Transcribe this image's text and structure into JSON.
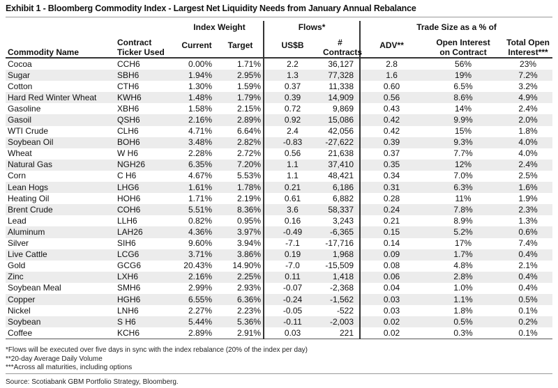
{
  "title": "Exhibit 1 - Bloomberg Commodity Index - Largest Net Liquidity Needs from January Annual Rebalance",
  "headers": {
    "group_index_weight": "Index Weight",
    "group_flows": "Flows*",
    "group_trade_size": "Trade Size as a % of",
    "commodity": "Commodity Name",
    "ticker_l1": "Contract",
    "ticker_l2": "Ticker Used",
    "current": "Current",
    "target": "Target",
    "usdb": "US$B",
    "contracts_l1": "#",
    "contracts_l2": "Contracts",
    "adv": "ADV**",
    "oi_l1": "Open Interest",
    "oi_l2": "on Contract",
    "toi_l1": "Total Open",
    "toi_l2": "Interest***"
  },
  "rows": [
    [
      "Cocoa",
      "CCH6",
      "0.00%",
      "1.71%",
      "2.2",
      "36,127",
      "2.8",
      "56%",
      "23%"
    ],
    [
      "Sugar",
      "SBH6",
      "1.94%",
      "2.95%",
      "1.3",
      "77,328",
      "1.6",
      "19%",
      "7.2%"
    ],
    [
      "Cotton",
      "CTH6",
      "1.30%",
      "1.59%",
      "0.37",
      "11,338",
      "0.60",
      "6.5%",
      "3.2%"
    ],
    [
      "Hard Red Winter Wheat",
      "KWH6",
      "1.48%",
      "1.79%",
      "0.39",
      "14,909",
      "0.56",
      "8.6%",
      "4.9%"
    ],
    [
      "Gasoline",
      "XBH6",
      "1.58%",
      "2.15%",
      "0.72",
      "9,869",
      "0.43",
      "14%",
      "2.4%"
    ],
    [
      "Gasoil",
      "QSH6",
      "2.16%",
      "2.89%",
      "0.92",
      "15,086",
      "0.42",
      "9.9%",
      "2.0%"
    ],
    [
      "WTI Crude",
      "CLH6",
      "4.71%",
      "6.64%",
      "2.4",
      "42,056",
      "0.42",
      "15%",
      "1.8%"
    ],
    [
      "Soybean Oil",
      "BOH6",
      "3.48%",
      "2.82%",
      "-0.83",
      "-27,622",
      "0.39",
      "9.3%",
      "4.0%"
    ],
    [
      "Wheat",
      "W H6",
      "2.28%",
      "2.72%",
      "0.56",
      "21,638",
      "0.37",
      "7.7%",
      "4.0%"
    ],
    [
      "Natural Gas",
      "NGH26",
      "6.35%",
      "7.20%",
      "1.1",
      "37,410",
      "0.35",
      "12%",
      "2.4%"
    ],
    [
      "Corn",
      "C H6",
      "4.67%",
      "5.53%",
      "1.1",
      "48,421",
      "0.34",
      "7.0%",
      "2.5%"
    ],
    [
      "Lean Hogs",
      "LHG6",
      "1.61%",
      "1.78%",
      "0.21",
      "6,186",
      "0.31",
      "6.3%",
      "1.6%"
    ],
    [
      "Heating Oil",
      "HOH6",
      "1.71%",
      "2.19%",
      "0.61",
      "6,882",
      "0.28",
      "11%",
      "1.9%"
    ],
    [
      "Brent Crude",
      "COH6",
      "5.51%",
      "8.36%",
      "3.6",
      "58,337",
      "0.24",
      "7.8%",
      "2.3%"
    ],
    [
      "Lead",
      "LLH6",
      "0.82%",
      "0.95%",
      "0.16",
      "3,243",
      "0.21",
      "8.9%",
      "1.3%"
    ],
    [
      "Aluminum",
      "LAH26",
      "4.36%",
      "3.97%",
      "-0.49",
      "-6,365",
      "0.15",
      "5.2%",
      "0.6%"
    ],
    [
      "Silver",
      "SIH6",
      "9.60%",
      "3.94%",
      "-7.1",
      "-17,716",
      "0.14",
      "17%",
      "7.4%"
    ],
    [
      "Live Cattle",
      "LCG6",
      "3.71%",
      "3.86%",
      "0.19",
      "1,968",
      "0.09",
      "1.7%",
      "0.4%"
    ],
    [
      "Gold",
      "GCG6",
      "20.43%",
      "14.90%",
      "-7.0",
      "-15,509",
      "0.08",
      "4.8%",
      "2.1%"
    ],
    [
      "Zinc",
      "LXH6",
      "2.16%",
      "2.25%",
      "0.11",
      "1,418",
      "0.06",
      "2.8%",
      "0.4%"
    ],
    [
      "Soybean Meal",
      "SMH6",
      "2.99%",
      "2.93%",
      "-0.07",
      "-2,368",
      "0.04",
      "1.0%",
      "0.4%"
    ],
    [
      "Copper",
      "HGH6",
      "6.55%",
      "6.36%",
      "-0.24",
      "-1,562",
      "0.03",
      "1.1%",
      "0.5%"
    ],
    [
      "Nickel",
      "LNH6",
      "2.27%",
      "2.23%",
      "-0.05",
      "-522",
      "0.03",
      "1.8%",
      "0.1%"
    ],
    [
      "Soybean",
      "S H6",
      "5.44%",
      "5.36%",
      "-0.11",
      "-2,003",
      "0.02",
      "0.5%",
      "0.2%"
    ],
    [
      "Coffee",
      "KCH6",
      "2.89%",
      "2.91%",
      "0.03",
      "221",
      "0.02",
      "0.3%",
      "0.1%"
    ]
  ],
  "footnotes": [
    "*Flows will be executed over five days in sync with the index rebalance (20% of the index per day)",
    "**20-day Average Daily Volume",
    "***Across all maturities, including options"
  ],
  "source": "Source: Scotiabank GBM Portfolio Strategy, Bloomberg."
}
